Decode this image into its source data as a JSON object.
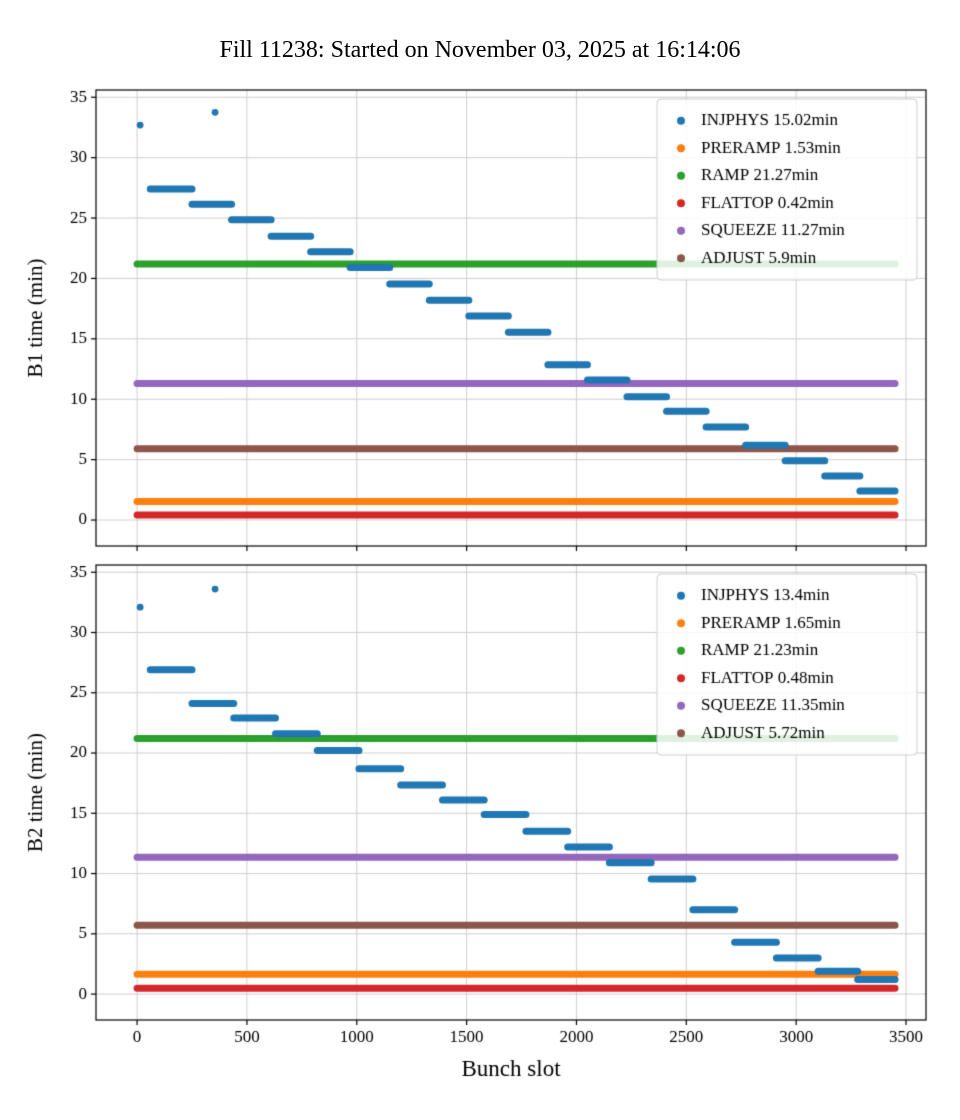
{
  "title": "Fill 11238: Started on November 03, 2025 at 16:14:06",
  "xlabel": "Bunch slot",
  "chart_data": [
    {
      "type": "scatter",
      "ylabel": "B1 time (min)",
      "xlabel": "Bunch slot",
      "xlim": [
        -187,
        3591
      ],
      "ylim": [
        -2.15,
        35.6
      ],
      "xticks": [
        0,
        500,
        1000,
        1500,
        2000,
        2500,
        3000,
        3500
      ],
      "yticks": [
        0,
        5,
        10,
        15,
        20,
        25,
        30,
        35
      ],
      "grid": true,
      "legend_position": "upper right",
      "series": [
        {
          "name": "INJPHYS",
          "label": "INJPHYS 15.02min",
          "color": "#1f77b4",
          "type": "steps",
          "points": [
            [
              14,
              32.7
            ],
            [
              355,
              33.75
            ]
          ],
          "steps": [
            [
              60,
              250,
              27.4
            ],
            [
              250,
              430,
              26.15
            ],
            [
              430,
              610,
              24.85
            ],
            [
              610,
              790,
              23.5
            ],
            [
              790,
              970,
              22.2
            ],
            [
              970,
              1150,
              20.9
            ],
            [
              1150,
              1330,
              19.55
            ],
            [
              1330,
              1510,
              18.2
            ],
            [
              1510,
              1690,
              16.9
            ],
            [
              1690,
              1870,
              15.55
            ],
            [
              1870,
              2050,
              12.85
            ],
            [
              2050,
              2230,
              11.6
            ],
            [
              2230,
              2410,
              10.2
            ],
            [
              2410,
              2590,
              9.0
            ],
            [
              2590,
              2770,
              7.7
            ],
            [
              2770,
              2950,
              6.2
            ],
            [
              2950,
              3130,
              4.9
            ],
            [
              3130,
              3290,
              3.65
            ],
            [
              3290,
              3450,
              2.4
            ]
          ]
        },
        {
          "name": "PRERAMP",
          "label": "PRERAMP 1.53min",
          "color": "#ff7f0e",
          "type": "hline",
          "y": 1.53,
          "x0": 0,
          "x1": 3450
        },
        {
          "name": "RAMP",
          "label": "RAMP 21.27min",
          "color": "#2ca02c",
          "type": "hline",
          "y": 21.2,
          "x0": 0,
          "x1": 3450
        },
        {
          "name": "FLATTOP",
          "label": "FLATTOP 0.42min",
          "color": "#d62728",
          "type": "hline",
          "y": 0.42,
          "x0": 0,
          "x1": 3450
        },
        {
          "name": "SQUEEZE",
          "label": "SQUEEZE 11.27min",
          "color": "#9467bd",
          "type": "hline",
          "y": 11.3,
          "x0": 0,
          "x1": 3450
        },
        {
          "name": "ADJUST",
          "label": "ADJUST 5.9min",
          "color": "#8c564b",
          "type": "hline",
          "y": 5.9,
          "x0": 0,
          "x1": 3450
        }
      ]
    },
    {
      "type": "scatter",
      "ylabel": "B2 time (min)",
      "xlabel": "Bunch slot",
      "xlim": [
        -187,
        3591
      ],
      "ylim": [
        -2.15,
        35.6
      ],
      "xticks": [
        0,
        500,
        1000,
        1500,
        2000,
        2500,
        3000,
        3500
      ],
      "yticks": [
        0,
        5,
        10,
        15,
        20,
        25,
        30,
        35
      ],
      "grid": true,
      "legend_position": "upper right",
      "series": [
        {
          "name": "INJPHYS",
          "label": "INJPHYS 13.4min",
          "color": "#1f77b4",
          "type": "steps",
          "points": [
            [
              14,
              32.1
            ],
            [
              355,
              33.6
            ]
          ],
          "steps": [
            [
              60,
              250,
              26.9
            ],
            [
              250,
              440,
              24.1
            ],
            [
              440,
              630,
              22.9
            ],
            [
              630,
              820,
              21.6
            ],
            [
              820,
              1010,
              20.2
            ],
            [
              1010,
              1200,
              18.7
            ],
            [
              1200,
              1390,
              17.35
            ],
            [
              1390,
              1580,
              16.1
            ],
            [
              1580,
              1770,
              14.9
            ],
            [
              1770,
              1960,
              13.5
            ],
            [
              1960,
              2150,
              12.2
            ],
            [
              2150,
              2340,
              10.9
            ],
            [
              2340,
              2530,
              9.55
            ],
            [
              2530,
              2720,
              7.0
            ],
            [
              2720,
              2910,
              4.3
            ],
            [
              2910,
              3100,
              3.0
            ],
            [
              3100,
              3280,
              1.9
            ],
            [
              3280,
              3450,
              1.2
            ]
          ]
        },
        {
          "name": "PRERAMP",
          "label": "PRERAMP 1.65min",
          "color": "#ff7f0e",
          "type": "hline",
          "y": 1.65,
          "x0": 0,
          "x1": 3450
        },
        {
          "name": "RAMP",
          "label": "RAMP 21.23min",
          "color": "#2ca02c",
          "type": "hline",
          "y": 21.2,
          "x0": 0,
          "x1": 3450
        },
        {
          "name": "FLATTOP",
          "label": "FLATTOP 0.48min",
          "color": "#d62728",
          "type": "hline",
          "y": 0.48,
          "x0": 0,
          "x1": 3450
        },
        {
          "name": "SQUEEZE",
          "label": "SQUEEZE 11.35min",
          "color": "#9467bd",
          "type": "hline",
          "y": 11.35,
          "x0": 0,
          "x1": 3450
        },
        {
          "name": "ADJUST",
          "label": "ADJUST 5.72min",
          "color": "#8c564b",
          "type": "hline",
          "y": 5.72,
          "x0": 0,
          "x1": 3450
        }
      ]
    }
  ]
}
